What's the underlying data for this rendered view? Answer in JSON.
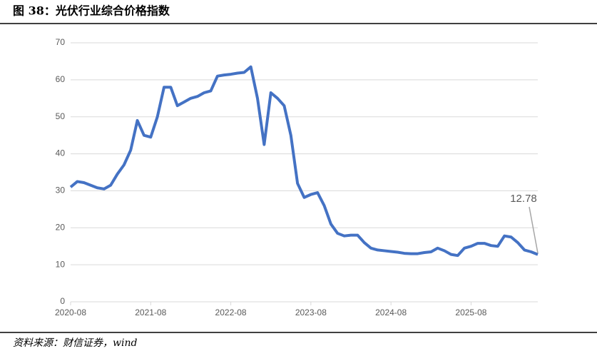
{
  "chart_data": {
    "type": "line",
    "title": "图 38：光伏行业综合价格指数",
    "source": "资料来源：财信证券，wind",
    "annotation": "12.78",
    "x": [
      "2020-08",
      "2020-09",
      "2020-10",
      "2020-11",
      "2020-12",
      "2021-01",
      "2021-02",
      "2021-03",
      "2021-04",
      "2021-05",
      "2021-06",
      "2021-07",
      "2021-08",
      "2021-09",
      "2021-10",
      "2021-11",
      "2021-12",
      "2022-01",
      "2022-02",
      "2022-03",
      "2022-04",
      "2022-05",
      "2022-06",
      "2022-07",
      "2022-08",
      "2022-09",
      "2022-10",
      "2022-11",
      "2022-12",
      "2023-01",
      "2023-02",
      "2023-03",
      "2023-04",
      "2023-05",
      "2023-06",
      "2023-07",
      "2023-08",
      "2023-09",
      "2023-10",
      "2023-11",
      "2023-12",
      "2024-01",
      "2024-02",
      "2024-03",
      "2024-04",
      "2024-05",
      "2024-06",
      "2024-07",
      "2024-08",
      "2024-09",
      "2024-10",
      "2024-11",
      "2024-12",
      "2025-01",
      "2025-02",
      "2025-03",
      "2025-04",
      "2025-05",
      "2025-06",
      "2025-07",
      "2025-08",
      "2025-09",
      "2025-10",
      "2025-11",
      "2025-12",
      "2026-01",
      "2026-02",
      "2026-03",
      "2026-04",
      "2026-05",
      "2026-06"
    ],
    "series": [
      {
        "name": "光伏行业综合价格指数",
        "color": "#4472c4",
        "values": [
          31,
          32.5,
          32.2,
          31.5,
          30.8,
          30.5,
          31.5,
          34.5,
          37,
          41,
          49,
          45,
          44.5,
          50,
          58,
          58,
          53,
          54,
          55,
          55.5,
          56.5,
          57,
          61,
          61.3,
          61.5,
          61.8,
          62,
          63.5,
          55,
          42.5,
          56.5,
          55,
          53,
          45,
          32,
          28.2,
          29,
          29.5,
          26,
          21,
          18.5,
          17.8,
          18,
          18,
          16,
          14.5,
          14,
          13.8,
          13.6,
          13.4,
          13.1,
          13,
          13,
          13.3,
          13.5,
          14.5,
          13.8,
          12.8,
          12.5,
          14.5,
          15,
          15.8,
          15.8,
          15.2,
          15,
          17.8,
          17.5,
          16,
          14,
          13.5,
          12.78
        ]
      }
    ],
    "xlim": [
      "2020-08",
      "2026-06"
    ],
    "xticks": [
      "2020-08",
      "2021-08",
      "2022-08",
      "2023-08",
      "2024-08",
      "2025-08"
    ],
    "ylim": [
      0,
      70
    ],
    "yticks": [
      0,
      10,
      20,
      30,
      40,
      50,
      60,
      70
    ],
    "grid": true
  }
}
